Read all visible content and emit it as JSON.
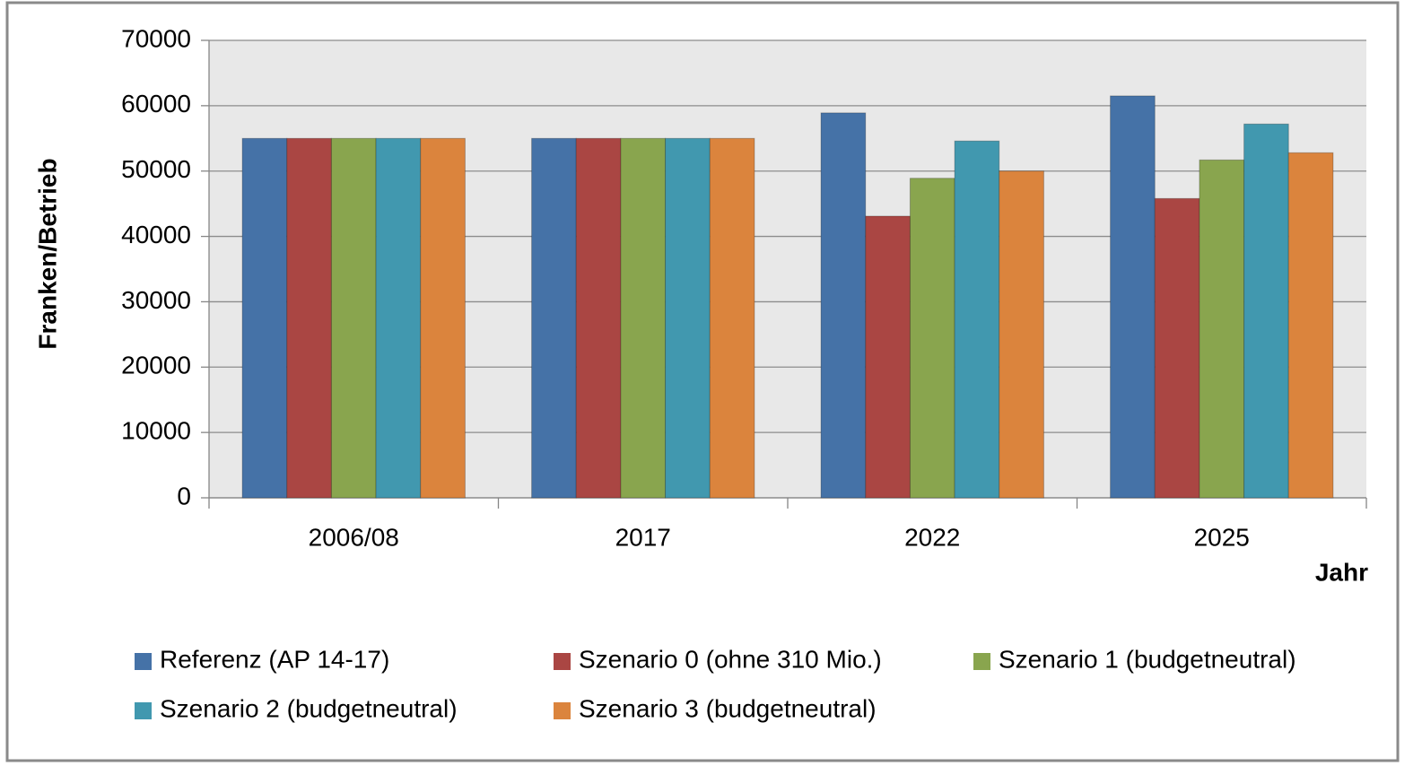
{
  "chart_data": {
    "type": "bar",
    "categories": [
      "2006/08",
      "2017",
      "2022",
      "2025"
    ],
    "series": [
      {
        "name": "Referenz (AP 14-17)",
        "color": "#4572a7",
        "values": [
          55000,
          55000,
          58900,
          61500
        ]
      },
      {
        "name": "Szenario 0 (ohne 310 Mio.)",
        "color": "#aa4643",
        "values": [
          55000,
          55000,
          43100,
          45800
        ]
      },
      {
        "name": "Szenario 1 (budgetneutral)",
        "color": "#89a54e",
        "values": [
          55000,
          55000,
          48900,
          51700
        ]
      },
      {
        "name": "Szenario 2 (budgetneutral)",
        "color": "#4198af",
        "values": [
          55000,
          55000,
          54600,
          57200
        ]
      },
      {
        "name": "Szenario 3 (budgetneutral)",
        "color": "#db843d",
        "values": [
          55000,
          55000,
          50000,
          52800
        ]
      }
    ],
    "y_label": "Franken/Betrieb",
    "x_label": "Jahr",
    "ylim": [
      0,
      70000
    ],
    "yticks": [
      0,
      10000,
      20000,
      30000,
      40000,
      50000,
      60000,
      70000
    ],
    "grid": true
  }
}
